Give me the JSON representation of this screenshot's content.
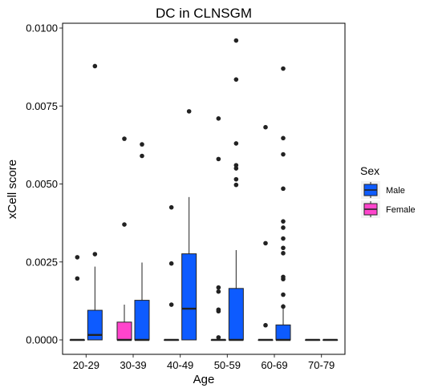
{
  "chart_data": {
    "type": "boxplot",
    "title": "DC in CLNSGM",
    "xlabel": "Age",
    "ylabel": "xCell score",
    "categories": [
      "20-29",
      "30-39",
      "40-49",
      "50-59",
      "60-69",
      "70-79"
    ],
    "yticks": [
      "0.0000",
      "0.0025",
      "0.0050",
      "0.0075",
      "0.0100"
    ],
    "ytick_values": [
      0,
      0.0025,
      0.005,
      0.0075,
      0.01
    ],
    "ylim": [
      -0.00055,
      0.0102
    ],
    "grid": false,
    "legend": {
      "title": "Sex",
      "position": "right",
      "entries": [
        {
          "name": "Male",
          "color": "#0D5BFF"
        },
        {
          "name": "Female",
          "color": "#FF44CC"
        }
      ]
    },
    "series": [
      {
        "name": "Female",
        "color": "#FF44CC",
        "boxes": [
          {
            "category": "20-29",
            "q1": 0,
            "median": 0,
            "q3": 0,
            "whisker_low": 0,
            "whisker_high": 0,
            "outliers": [
              0.00265,
              0.00197
            ]
          },
          {
            "category": "30-39",
            "q1": 0,
            "median": 0,
            "q3": 0.00057,
            "whisker_low": 0,
            "whisker_high": 0.00113,
            "outliers": [
              0.00645,
              0.0037
            ]
          },
          {
            "category": "40-49",
            "q1": 0,
            "median": 0,
            "q3": 0,
            "whisker_low": 0,
            "whisker_high": 0,
            "outliers": [
              0.00425,
              0.00245,
              0.00113
            ]
          },
          {
            "category": "50-59",
            "q1": 0,
            "median": 0,
            "q3": 0,
            "whisker_low": 0,
            "whisker_high": 0,
            "outliers": [
              0.0071,
              0.0058,
              0.00168,
              0.00155,
              0.00097,
              0.00092,
              8e-05
            ]
          },
          {
            "category": "60-69",
            "q1": 0,
            "median": 0,
            "q3": 0,
            "whisker_low": 0,
            "whisker_high": 0,
            "outliers": [
              0.00682,
              0.0031,
              0.00047
            ]
          },
          {
            "category": "70-79",
            "q1": 0,
            "median": 0,
            "q3": 0,
            "whisker_low": 0,
            "whisker_high": 0,
            "outliers": []
          }
        ]
      },
      {
        "name": "Male",
        "color": "#0D5BFF",
        "boxes": [
          {
            "category": "20-29",
            "q1": 0,
            "median": 0.00016,
            "q3": 0.00095,
            "whisker_low": 0,
            "whisker_high": 0.00235,
            "outliers": [
              0.00878,
              0.00275
            ]
          },
          {
            "category": "30-39",
            "q1": 0,
            "median": 0,
            "q3": 0.00127,
            "whisker_low": 0,
            "whisker_high": 0.00248,
            "outliers": [
              0.00627,
              0.0059
            ]
          },
          {
            "category": "40-49",
            "q1": 0,
            "median": 0.001,
            "q3": 0.00276,
            "whisker_low": 0,
            "whisker_high": 0.00458,
            "outliers": [
              0.00733
            ]
          },
          {
            "category": "50-59",
            "q1": 0,
            "median": 0,
            "q3": 0.00165,
            "whisker_low": 0,
            "whisker_high": 0.00288,
            "outliers": [
              0.0096,
              0.00835,
              0.0063,
              0.0056,
              0.0055,
              0.00515,
              0.00497
            ]
          },
          {
            "category": "60-69",
            "q1": 0,
            "median": 0,
            "q3": 0.00048,
            "whisker_low": 0,
            "whisker_high": 0.00115,
            "outliers": [
              0.0087,
              0.00647,
              0.00595,
              0.00485,
              0.0038,
              0.0036,
              0.00325,
              0.00295,
              0.00278,
              0.00202,
              0.00195,
              0.00145,
              0.00107
            ]
          },
          {
            "category": "70-79",
            "q1": 0,
            "median": 0,
            "q3": 0,
            "whisker_low": 0,
            "whisker_high": 0,
            "outliers": []
          }
        ]
      }
    ]
  }
}
